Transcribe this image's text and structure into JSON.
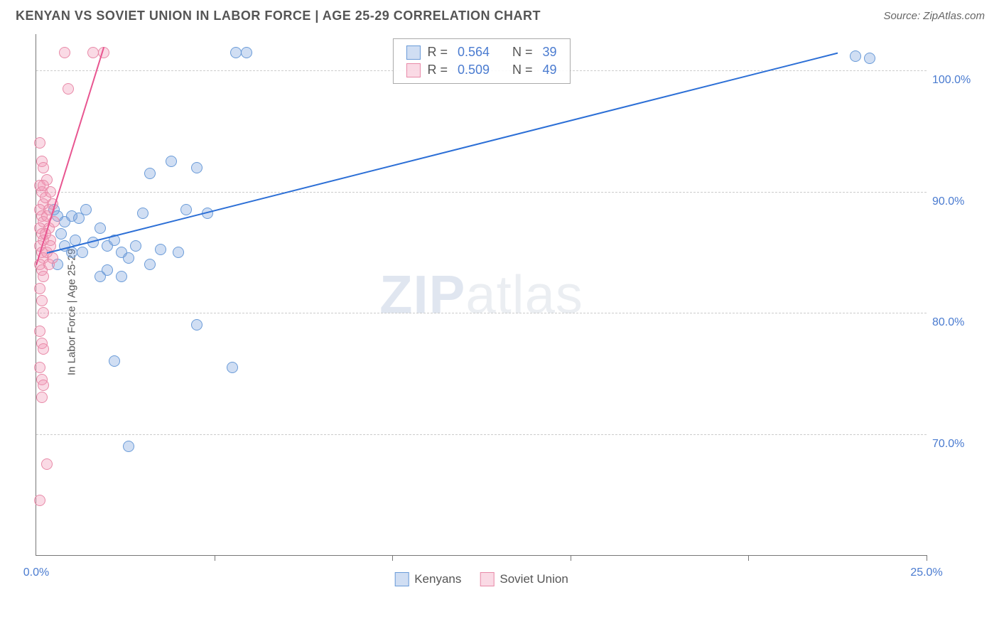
{
  "title": "KENYAN VS SOVIET UNION IN LABOR FORCE | AGE 25-29 CORRELATION CHART",
  "source_text": "Source: ZipAtlas.com",
  "y_axis_label": "In Labor Force | Age 25-29",
  "watermark_zip": "ZIP",
  "watermark_atlas": "atlas",
  "chart": {
    "type": "scatter",
    "xlim": [
      0,
      25
    ],
    "ylim": [
      60,
      103
    ],
    "x_ticks": [
      0,
      5,
      10,
      15,
      20,
      25
    ],
    "x_tick_labels": [
      "0.0%",
      "",
      "",
      "",
      "",
      "25.0%"
    ],
    "y_gridlines": [
      70,
      80,
      90,
      100
    ],
    "y_tick_labels": [
      "70.0%",
      "80.0%",
      "90.0%",
      "100.0%"
    ],
    "background_color": "#ffffff",
    "grid_color": "#cccccc",
    "axis_color": "#777777",
    "tick_label_color": "#4a7bd0",
    "marker_radius": 8,
    "marker_stroke_width": 1.5,
    "series": [
      {
        "name": "Kenyans",
        "fill_color": "rgba(120,160,220,0.35)",
        "stroke_color": "#6a9bd8",
        "line_color": "#2c6fd6",
        "r_value": "0.564",
        "n_value": "39",
        "trend": {
          "x1": 0.3,
          "y1": 85.0,
          "x2": 22.5,
          "y2": 101.5
        },
        "points": [
          [
            5.6,
            101.5
          ],
          [
            5.9,
            101.5
          ],
          [
            23.0,
            101.2
          ],
          [
            23.4,
            101.0
          ],
          [
            0.5,
            88.5
          ],
          [
            0.6,
            88.0
          ],
          [
            0.7,
            86.5
          ],
          [
            0.8,
            87.5
          ],
          [
            1.0,
            88.0
          ],
          [
            1.2,
            87.8
          ],
          [
            1.4,
            88.5
          ],
          [
            1.6,
            85.8
          ],
          [
            1.8,
            87.0
          ],
          [
            2.0,
            85.5
          ],
          [
            2.2,
            86.0
          ],
          [
            2.4,
            85.0
          ],
          [
            2.6,
            84.5
          ],
          [
            2.8,
            85.5
          ],
          [
            3.0,
            88.2
          ],
          [
            3.2,
            84.0
          ],
          [
            3.5,
            85.2
          ],
          [
            3.8,
            92.5
          ],
          [
            4.0,
            85.0
          ],
          [
            4.2,
            88.5
          ],
          [
            4.5,
            92.0
          ],
          [
            2.0,
            83.5
          ],
          [
            2.4,
            83.0
          ],
          [
            1.8,
            83.0
          ],
          [
            1.0,
            85.0
          ],
          [
            4.5,
            79.0
          ],
          [
            2.2,
            76.0
          ],
          [
            5.5,
            75.5
          ],
          [
            2.6,
            69.0
          ],
          [
            0.6,
            84.0
          ],
          [
            0.8,
            85.5
          ],
          [
            1.1,
            86.0
          ],
          [
            1.3,
            85.0
          ],
          [
            3.2,
            91.5
          ],
          [
            4.8,
            88.2
          ]
        ]
      },
      {
        "name": "Soviet Union",
        "fill_color": "rgba(240,150,180,0.35)",
        "stroke_color": "#e88aa8",
        "line_color": "#e85590",
        "r_value": "0.509",
        "n_value": "49",
        "trend": {
          "x1": 0.0,
          "y1": 84.0,
          "x2": 1.9,
          "y2": 102.0
        },
        "points": [
          [
            0.8,
            101.5
          ],
          [
            1.6,
            101.5
          ],
          [
            1.9,
            101.5
          ],
          [
            0.9,
            98.5
          ],
          [
            0.1,
            94.0
          ],
          [
            0.15,
            92.5
          ],
          [
            0.2,
            92.0
          ],
          [
            0.1,
            90.5
          ],
          [
            0.15,
            90.0
          ],
          [
            0.2,
            89.0
          ],
          [
            0.1,
            88.5
          ],
          [
            0.15,
            88.0
          ],
          [
            0.2,
            87.5
          ],
          [
            0.1,
            87.0
          ],
          [
            0.15,
            86.5
          ],
          [
            0.2,
            86.0
          ],
          [
            0.1,
            85.5
          ],
          [
            0.15,
            85.0
          ],
          [
            0.2,
            84.5
          ],
          [
            0.1,
            84.0
          ],
          [
            0.15,
            83.5
          ],
          [
            0.2,
            83.0
          ],
          [
            0.1,
            82.0
          ],
          [
            0.15,
            81.0
          ],
          [
            0.2,
            80.0
          ],
          [
            0.1,
            78.5
          ],
          [
            0.15,
            77.5
          ],
          [
            0.2,
            77.0
          ],
          [
            0.1,
            75.5
          ],
          [
            0.15,
            74.5
          ],
          [
            0.2,
            74.0
          ],
          [
            0.15,
            73.0
          ],
          [
            0.3,
            67.5
          ],
          [
            0.1,
            64.5
          ],
          [
            0.25,
            89.5
          ],
          [
            0.3,
            88.0
          ],
          [
            0.35,
            87.0
          ],
          [
            0.4,
            86.0
          ],
          [
            0.3,
            85.0
          ],
          [
            0.35,
            84.0
          ],
          [
            0.4,
            90.0
          ],
          [
            0.45,
            89.0
          ],
          [
            0.5,
            87.5
          ],
          [
            0.3,
            91.0
          ],
          [
            0.25,
            86.5
          ],
          [
            0.35,
            88.5
          ],
          [
            0.4,
            85.5
          ],
          [
            0.45,
            84.5
          ],
          [
            0.2,
            90.5
          ]
        ]
      }
    ]
  },
  "legend": {
    "items": [
      "Kenyans",
      "Soviet Union"
    ]
  },
  "stats_box": {
    "r_label": "R =",
    "n_label": "N ="
  }
}
